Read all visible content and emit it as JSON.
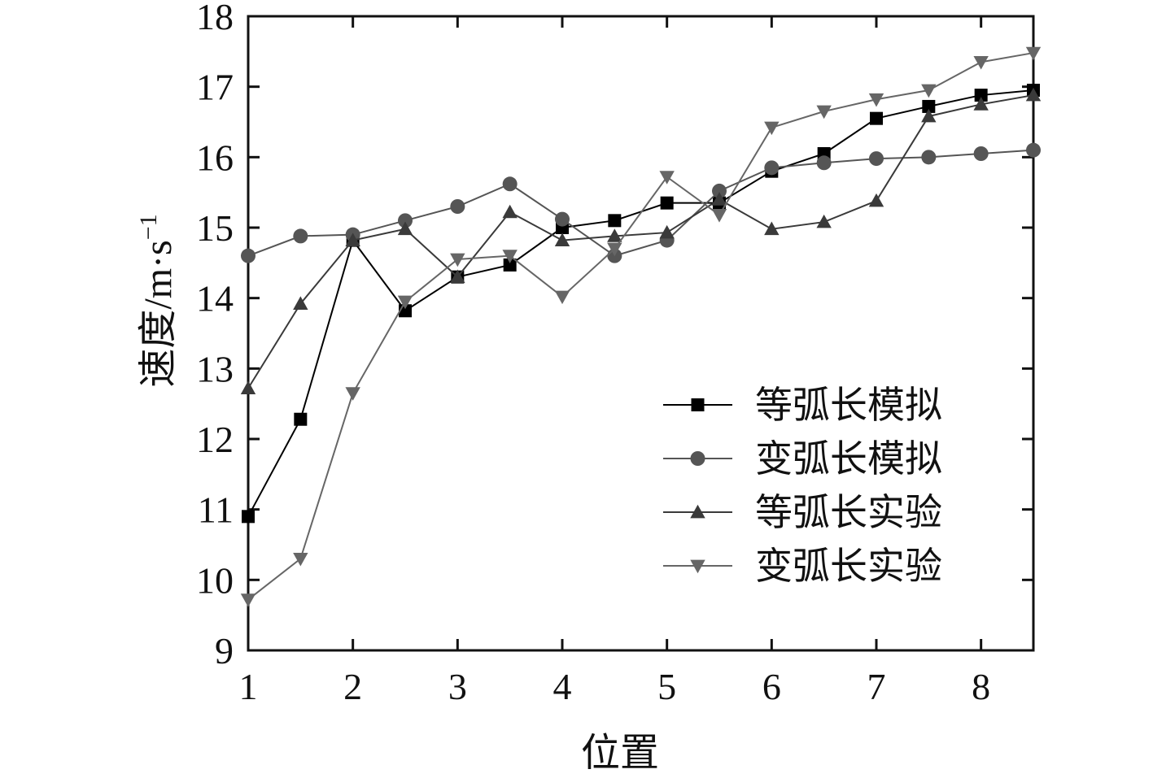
{
  "chart_data": {
    "type": "line",
    "xlabel": "位置",
    "ylabel": "速度/m·s",
    "ylabel_superscript": "−1",
    "xlim": [
      1,
      8.5
    ],
    "ylim": [
      9,
      18
    ],
    "xticks": [
      1,
      2,
      3,
      4,
      5,
      6,
      7,
      8
    ],
    "yticks": [
      9,
      10,
      11,
      12,
      13,
      14,
      15,
      16,
      17,
      18
    ],
    "x": [
      1,
      1.5,
      2,
      2.5,
      3,
      3.5,
      4,
      4.5,
      5,
      5.5,
      6,
      6.5,
      7,
      7.5,
      8,
      8.5
    ],
    "grid": false,
    "legend_position": "lower-right",
    "series": [
      {
        "name": "等弧长模拟",
        "marker": "square",
        "color": "#000000",
        "values": [
          10.9,
          12.28,
          14.82,
          13.82,
          14.3,
          14.47,
          15.0,
          15.1,
          15.35,
          15.35,
          15.8,
          16.05,
          16.55,
          16.72,
          16.88,
          16.95
        ]
      },
      {
        "name": "变弧长模拟",
        "marker": "circle",
        "color": "#555555",
        "values": [
          14.6,
          14.88,
          14.9,
          15.1,
          15.3,
          15.62,
          15.12,
          14.6,
          14.82,
          15.52,
          15.85,
          15.92,
          15.98,
          16.0,
          16.05,
          16.1
        ]
      },
      {
        "name": "等弧长实验",
        "marker": "triangle-up",
        "color": "#3a3a3a",
        "values": [
          12.72,
          13.92,
          14.82,
          14.98,
          14.3,
          15.22,
          14.82,
          14.88,
          14.93,
          15.4,
          14.98,
          15.08,
          15.38,
          16.58,
          16.75,
          16.88
        ]
      },
      {
        "name": "变弧长实验",
        "marker": "triangle-down",
        "color": "#666666",
        "values": [
          9.72,
          10.3,
          12.65,
          13.95,
          14.55,
          14.6,
          14.02,
          14.7,
          15.72,
          15.18,
          16.42,
          16.65,
          16.82,
          16.95,
          17.35,
          17.48
        ]
      }
    ]
  }
}
